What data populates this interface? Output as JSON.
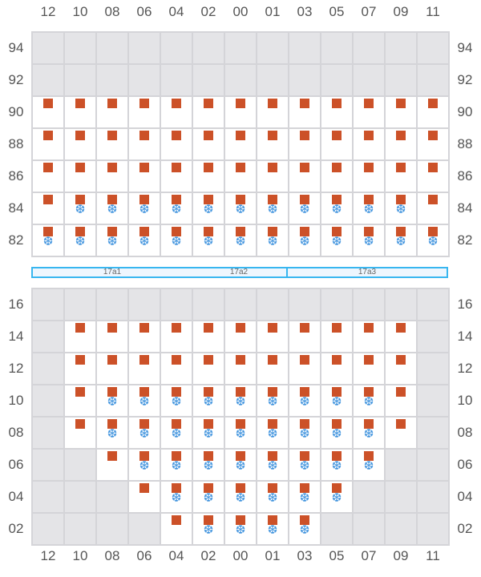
{
  "columns": [
    "12",
    "10",
    "08",
    "06",
    "04",
    "02",
    "00",
    "01",
    "03",
    "05",
    "07",
    "09",
    "11"
  ],
  "legend": {
    "g": "unavailable",
    "o": "orange-square",
    "os": "orange-square+snowflake",
    "colors": {
      "square": "#cc5128",
      "snowflake": "#3f93de",
      "unavailable": "#e4e4e7",
      "zone_border": "#38b6f0"
    }
  },
  "snow_glyph": "❆",
  "top_block": {
    "rows": [
      {
        "label": "94",
        "cells": [
          "g",
          "g",
          "g",
          "g",
          "g",
          "g",
          "g",
          "g",
          "g",
          "g",
          "g",
          "g",
          "g"
        ]
      },
      {
        "label": "92",
        "cells": [
          "g",
          "g",
          "g",
          "g",
          "g",
          "g",
          "g",
          "g",
          "g",
          "g",
          "g",
          "g",
          "g"
        ]
      },
      {
        "label": "90",
        "cells": [
          "o",
          "o",
          "o",
          "o",
          "o",
          "o",
          "o",
          "o",
          "o",
          "o",
          "o",
          "o",
          "o"
        ]
      },
      {
        "label": "88",
        "cells": [
          "o",
          "o",
          "o",
          "o",
          "o",
          "o",
          "o",
          "o",
          "o",
          "o",
          "o",
          "o",
          "o"
        ]
      },
      {
        "label": "86",
        "cells": [
          "o",
          "o",
          "o",
          "o",
          "o",
          "o",
          "o",
          "o",
          "o",
          "o",
          "o",
          "o",
          "o"
        ]
      },
      {
        "label": "84",
        "cells": [
          "o",
          "os",
          "os",
          "os",
          "os",
          "os",
          "os",
          "os",
          "os",
          "os",
          "os",
          "os",
          "o"
        ]
      },
      {
        "label": "82",
        "cells": [
          "os",
          "os",
          "os",
          "os",
          "os",
          "os",
          "os",
          "os",
          "os",
          "os",
          "os",
          "os",
          "os"
        ]
      }
    ]
  },
  "zones": [
    {
      "label": "17a1",
      "from_col": 0,
      "span": 5
    },
    {
      "label": "17a2",
      "from_col": 5,
      "span": 3
    },
    {
      "label": "17a3",
      "from_col": 8,
      "span": 5
    }
  ],
  "bottom_block": {
    "rows": [
      {
        "label": "16",
        "cells": [
          "g",
          "g",
          "g",
          "g",
          "g",
          "g",
          "g",
          "g",
          "g",
          "g",
          "g",
          "g",
          "g"
        ]
      },
      {
        "label": "14",
        "cells": [
          "g",
          "o",
          "o",
          "o",
          "o",
          "o",
          "o",
          "o",
          "o",
          "o",
          "o",
          "o",
          "g"
        ]
      },
      {
        "label": "12",
        "cells": [
          "g",
          "o",
          "o",
          "o",
          "o",
          "o",
          "o",
          "o",
          "o",
          "o",
          "o",
          "o",
          "g"
        ]
      },
      {
        "label": "10",
        "cells": [
          "g",
          "o",
          "os",
          "os",
          "os",
          "os",
          "os",
          "os",
          "os",
          "os",
          "os",
          "o",
          "g"
        ]
      },
      {
        "label": "08",
        "cells": [
          "g",
          "o",
          "os",
          "os",
          "os",
          "os",
          "os",
          "os",
          "os",
          "os",
          "os",
          "o",
          "g"
        ]
      },
      {
        "label": "06",
        "cells": [
          "g",
          "g",
          "o",
          "os",
          "os",
          "os",
          "os",
          "os",
          "os",
          "os",
          "os",
          "g",
          "g"
        ]
      },
      {
        "label": "04",
        "cells": [
          "g",
          "g",
          "g",
          "o",
          "os",
          "os",
          "os",
          "os",
          "os",
          "os",
          "g",
          "g",
          "g"
        ]
      },
      {
        "label": "02",
        "cells": [
          "g",
          "g",
          "g",
          "g",
          "o",
          "os",
          "os",
          "os",
          "os",
          "g",
          "g",
          "g",
          "g"
        ]
      }
    ]
  }
}
